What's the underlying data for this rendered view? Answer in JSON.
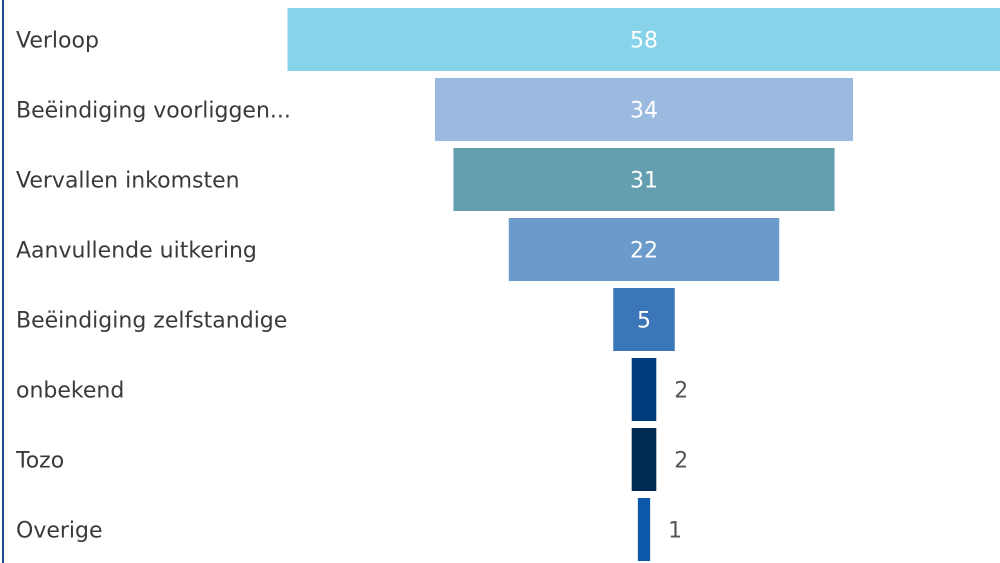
{
  "chart_data": {
    "type": "funnel",
    "categories": [
      "Verloop",
      "Beëindiging voorliggen...",
      "Vervallen inkomsten",
      "Aanvullende uitkering",
      "Beëindiging zelfstandige",
      "onbekend",
      "Tozo",
      "Overige"
    ],
    "values": [
      58,
      34,
      31,
      22,
      5,
      2,
      2,
      1
    ],
    "colors": [
      "#87d3ea",
      "#9abadf",
      "#649fb0",
      "#6a9bcb",
      "#3b77b8",
      "#003b7b",
      "#002a52",
      "#0b57a8"
    ]
  }
}
